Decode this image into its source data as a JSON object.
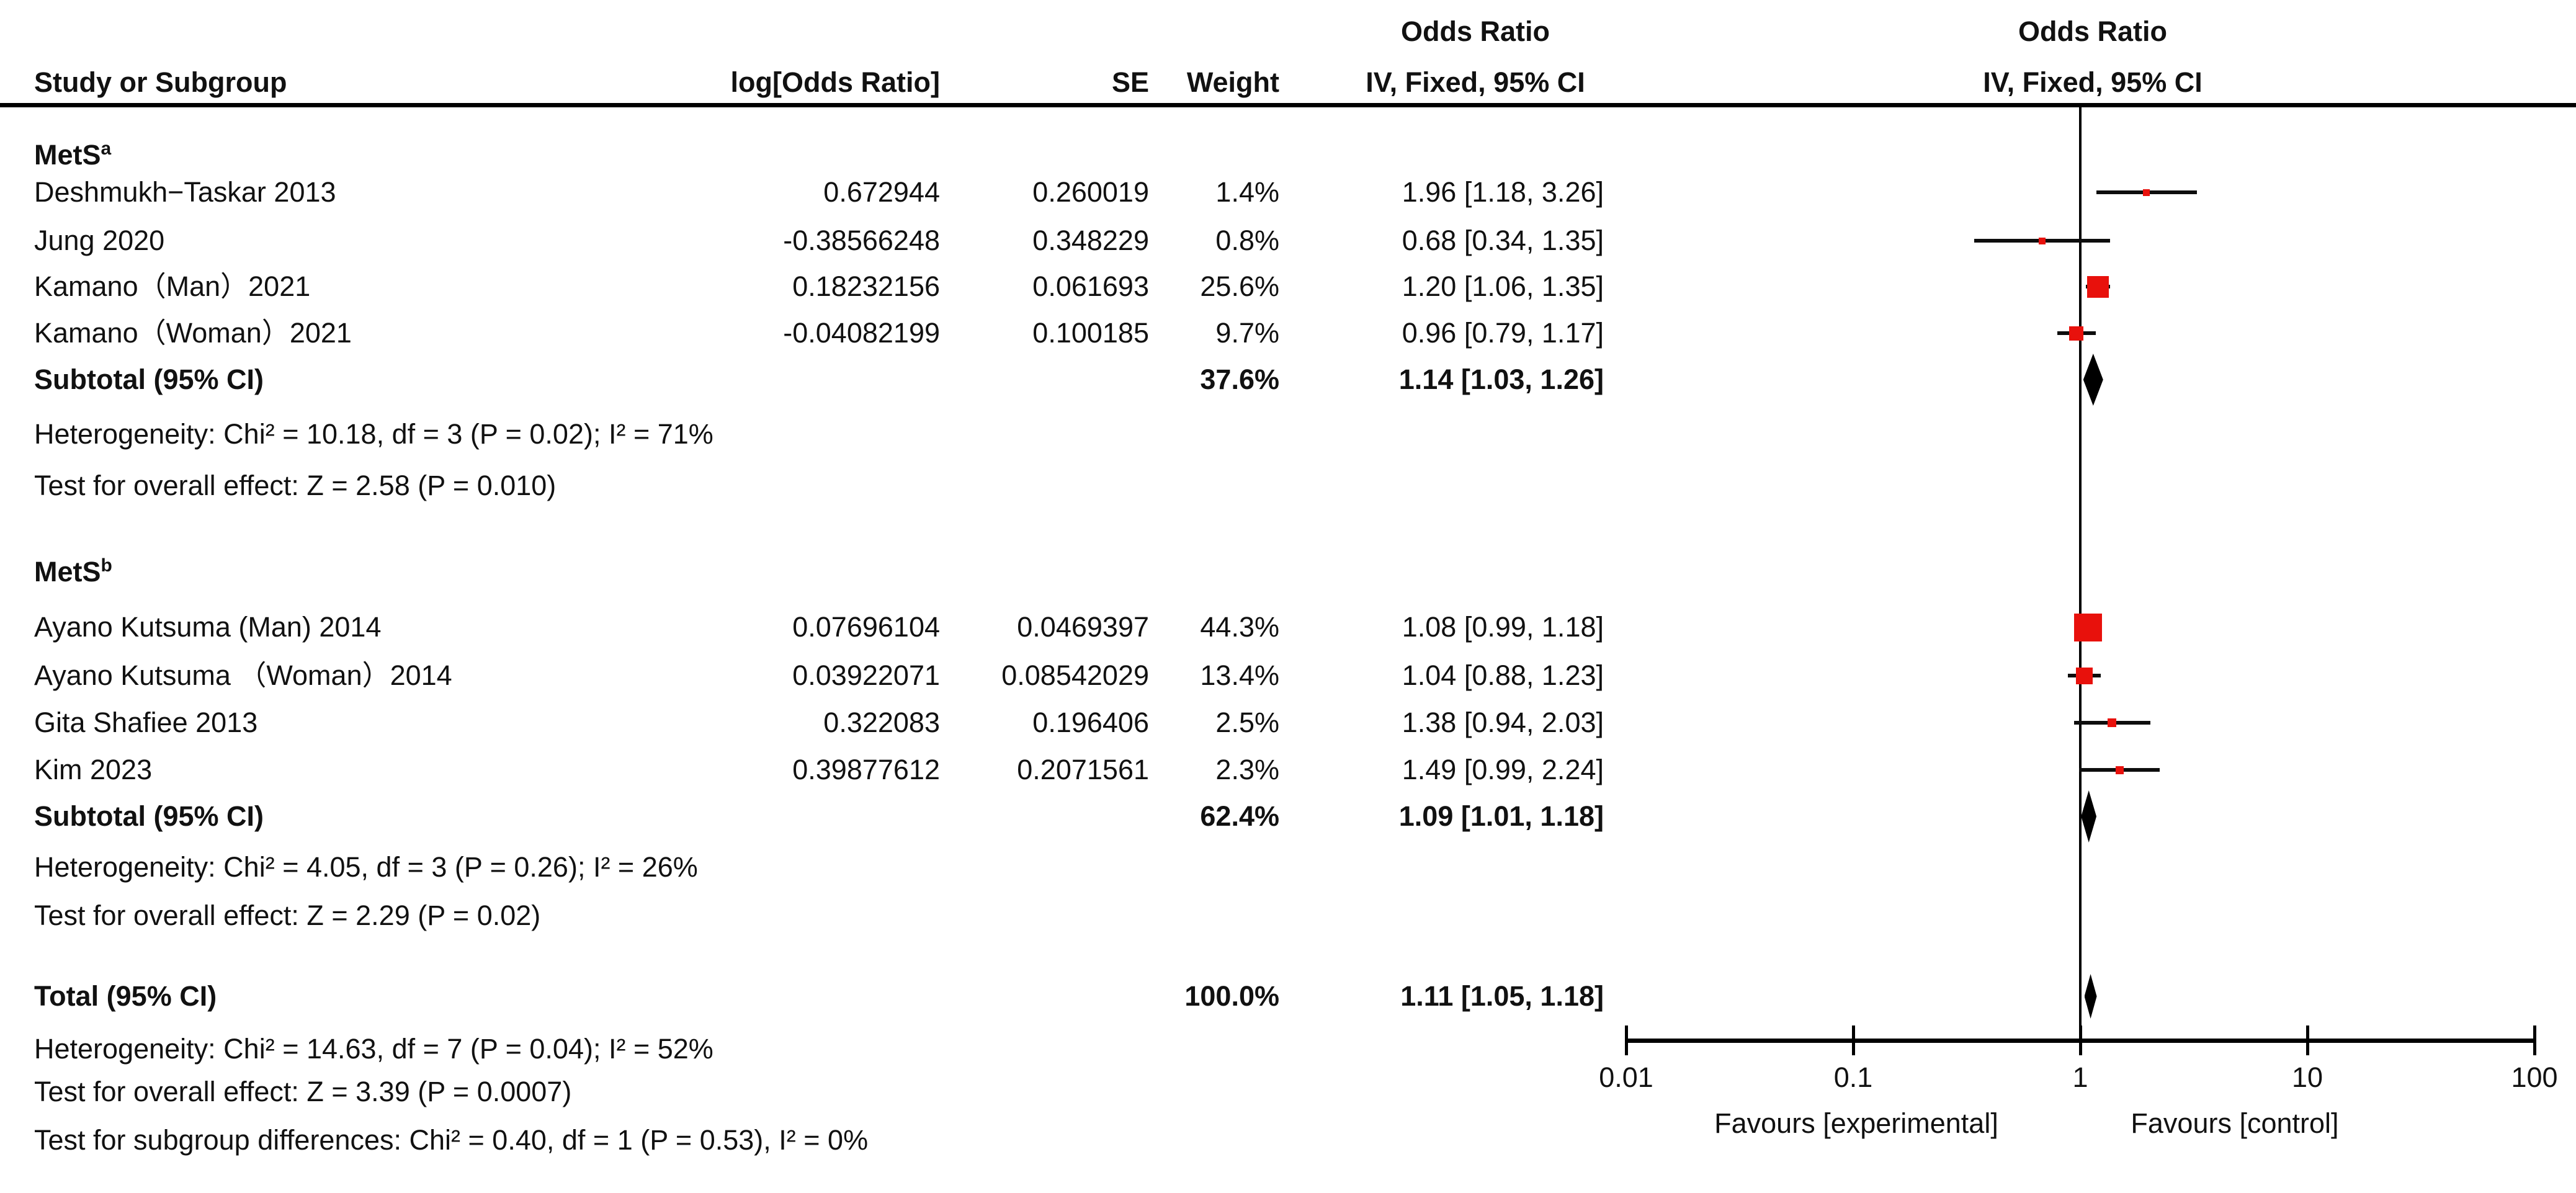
{
  "header": {
    "effect_title": "Odds Ratio",
    "study_col": "Study or Subgroup",
    "log_or_col": "log[Odds Ratio]",
    "se_col": "SE",
    "weight_col": "Weight",
    "model_col": "IV, Fixed, 95% CI"
  },
  "colors": {
    "marker_red": "#e8110c",
    "diamond_black": "#000000",
    "line_black": "#0d0d0d"
  },
  "chart_data": {
    "type": "forest",
    "scale": "log10",
    "x_axis": {
      "ticks": [
        0.01,
        0.1,
        1,
        10,
        100
      ],
      "tick_labels": [
        "0.01",
        "0.1",
        "1",
        "10",
        "100"
      ]
    },
    "favours_left": "Favours [experimental]",
    "favours_right": "Favours [control]",
    "subgroups": [
      {
        "name": "MetS",
        "sup": "a",
        "studies": [
          {
            "label": "Deshmukh−Taskar 2013",
            "log_or": "0.672944",
            "se": "0.260019",
            "weight": "1.4%",
            "weight_value": 1.4,
            "or": 1.96,
            "ci_low": 1.18,
            "ci_high": 3.26,
            "ci_text": "1.96 [1.18, 3.26]"
          },
          {
            "label": "Jung 2020",
            "log_or": "-0.38566248",
            "se": "0.348229",
            "weight": "0.8%",
            "weight_value": 0.8,
            "or": 0.68,
            "ci_low": 0.34,
            "ci_high": 1.35,
            "ci_text": "0.68 [0.34, 1.35]"
          },
          {
            "label": "Kamano（Man）2021",
            "log_or": "0.18232156",
            "se": "0.061693",
            "weight": "25.6%",
            "weight_value": 25.6,
            "or": 1.2,
            "ci_low": 1.06,
            "ci_high": 1.35,
            "ci_text": "1.20 [1.06, 1.35]"
          },
          {
            "label": "Kamano（Woman）2021",
            "log_or": "-0.04082199",
            "se": "0.100185",
            "weight": "9.7%",
            "weight_value": 9.7,
            "or": 0.96,
            "ci_low": 0.79,
            "ci_high": 1.17,
            "ci_text": "0.96 [0.79, 1.17]"
          }
        ],
        "subtotal": {
          "label": "Subtotal (95% CI)",
          "weight": "37.6%",
          "or": 1.14,
          "ci_low": 1.03,
          "ci_high": 1.26,
          "ci_text": "1.14 [1.03, 1.26]"
        },
        "heterogeneity": "Heterogeneity: Chi² = 10.18, df = 3 (P = 0.02); I² = 71%",
        "overall_effect": "Test for overall effect: Z = 2.58 (P = 0.010)"
      },
      {
        "name": "MetS",
        "sup": "b",
        "studies": [
          {
            "label": "Ayano Kutsuma (Man) 2014",
            "log_or": "0.07696104",
            "se": "0.0469397",
            "weight": "44.3%",
            "weight_value": 44.3,
            "or": 1.08,
            "ci_low": 0.99,
            "ci_high": 1.18,
            "ci_text": "1.08 [0.99, 1.18]"
          },
          {
            "label": "Ayano Kutsuma （Woman）2014",
            "log_or": "0.03922071",
            "se": "0.08542029",
            "weight": "13.4%",
            "weight_value": 13.4,
            "or": 1.04,
            "ci_low": 0.88,
            "ci_high": 1.23,
            "ci_text": "1.04 [0.88, 1.23]"
          },
          {
            "label": "Gita Shafiee 2013",
            "log_or": "0.322083",
            "se": "0.196406",
            "weight": "2.5%",
            "weight_value": 2.5,
            "or": 1.38,
            "ci_low": 0.94,
            "ci_high": 2.03,
            "ci_text": "1.38 [0.94, 2.03]"
          },
          {
            "label": "Kim 2023",
            "log_or": "0.39877612",
            "se": "0.2071561",
            "weight": "2.3%",
            "weight_value": 2.3,
            "or": 1.49,
            "ci_low": 0.99,
            "ci_high": 2.24,
            "ci_text": "1.49 [0.99, 2.24]"
          }
        ],
        "subtotal": {
          "label": "Subtotal (95% CI)",
          "weight": "62.4%",
          "or": 1.09,
          "ci_low": 1.01,
          "ci_high": 1.18,
          "ci_text": "1.09 [1.01, 1.18]"
        },
        "heterogeneity": "Heterogeneity: Chi² = 4.05, df = 3 (P = 0.26); I² = 26%",
        "overall_effect": "Test for overall effect: Z = 2.29 (P = 0.02)"
      }
    ],
    "total": {
      "label": "Total (95% CI)",
      "weight": "100.0%",
      "or": 1.11,
      "ci_low": 1.05,
      "ci_high": 1.18,
      "ci_text": "1.11 [1.05, 1.18]"
    },
    "total_heterogeneity": "Heterogeneity: Chi² = 14.63, df = 7 (P = 0.04); I² = 52%",
    "total_overall_effect": "Test for overall effect: Z = 3.39 (P = 0.0007)",
    "subgroup_difference": "Test for subgroup differences: Chi² = 0.40, df = 1 (P = 0.53), I² = 0%"
  }
}
